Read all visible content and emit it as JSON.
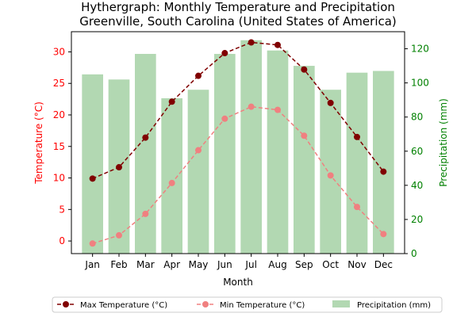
{
  "chart_data": {
    "type": "bar+line",
    "title": "Hythergraph: Monthly Temperature and Precipitation",
    "subtitle": "Greenville, South Carolina (United States of America)",
    "xlabel": "Month",
    "ylabel_left": "Temperature (°C)",
    "ylabel_right": "Precipitation (mm)",
    "categories": [
      "Jan",
      "Feb",
      "Mar",
      "Apr",
      "May",
      "Jun",
      "Jul",
      "Aug",
      "Sep",
      "Oct",
      "Nov",
      "Dec"
    ],
    "ylim_left": [
      -2,
      33.2
    ],
    "ylim_right": [
      0,
      130
    ],
    "yticks_left": [
      0,
      5,
      10,
      15,
      20,
      25,
      30
    ],
    "yticks_right": [
      0,
      20,
      40,
      60,
      80,
      100,
      120
    ],
    "grid": false,
    "legend_position": "bottom-center",
    "series": [
      {
        "name": "Max Temperature (°C)",
        "kind": "line",
        "axis": "left",
        "color": "#800000",
        "linestyle": "dashed",
        "values": [
          9.9,
          11.7,
          16.4,
          22.1,
          26.2,
          29.8,
          31.5,
          31.1,
          27.2,
          21.9,
          16.5,
          11.0
        ]
      },
      {
        "name": "Min Temperature (°C)",
        "kind": "line",
        "axis": "left",
        "color": "#f08080",
        "linestyle": "dashed",
        "values": [
          -0.4,
          0.9,
          4.3,
          9.2,
          14.4,
          19.4,
          21.3,
          20.8,
          16.7,
          10.4,
          5.4,
          1.1
        ]
      },
      {
        "name": "Precipitation (mm)",
        "kind": "bar",
        "axis": "right",
        "color": "#b2d8b2",
        "values": [
          105,
          102,
          117,
          91,
          96,
          117,
          125,
          119,
          110,
          96,
          106,
          107
        ]
      }
    ],
    "colors": {
      "left_axis": "#ff0000",
      "right_axis": "#008000"
    }
  }
}
